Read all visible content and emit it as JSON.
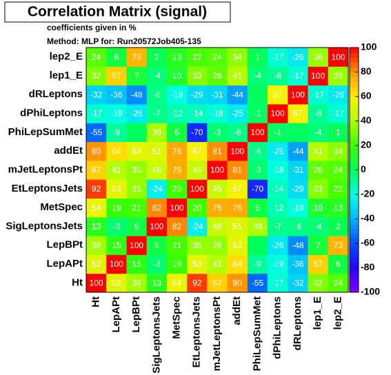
{
  "chart_data": {
    "type": "heatmap",
    "title": "Correlation Matrix (signal)",
    "subtitle": "coefficients given in %",
    "method": "Method: MLP for: Run20572Job405-135",
    "categories": [
      "Ht",
      "LepAPt",
      "LepBPt",
      "SigLeptonsJets",
      "MetSpec",
      "EtLeptonsJets",
      "mJetLeptonsPt",
      "addEt",
      "PhiLepSumMet",
      "dPhiLeptons",
      "dRLeptons",
      "lep1_E",
      "lep2_E"
    ],
    "z": [
      [
        100,
        52,
        38,
        13,
        54,
        92,
        67,
        80,
        -55,
        -17,
        -32,
        32,
        24
      ],
      [
        52,
        100,
        15,
        -3,
        19,
        53,
        41,
        64,
        -9,
        -19,
        -36,
        67,
        6
      ],
      [
        38,
        15,
        100,
        5,
        21,
        35,
        35,
        53,
        0,
        -26,
        -48,
        7,
        73
      ],
      [
        13,
        -3,
        5,
        100,
        82,
        -24,
        46,
        51,
        39,
        -7,
        -6,
        -4,
        2
      ],
      [
        54,
        19,
        21,
        82,
        100,
        20,
        75,
        76,
        5,
        -12,
        -19,
        10,
        13
      ],
      [
        92,
        53,
        35,
        -24,
        20,
        100,
        45,
        57,
        -70,
        -14,
        -29,
        33,
        22
      ],
      [
        67,
        41,
        35,
        46,
        75,
        45,
        100,
        81,
        -3,
        -18,
        -31,
        26,
        24
      ],
      [
        80,
        64,
        53,
        51,
        76,
        57,
        81,
        100,
        -6,
        -25,
        -44,
        41,
        34
      ],
      [
        -55,
        -9,
        0,
        39,
        5,
        -70,
        -3,
        -6,
        100,
        -1,
        0,
        -4,
        1
      ],
      [
        -17,
        -19,
        -26,
        -7,
        -12,
        -14,
        -18,
        -25,
        -1,
        100,
        57,
        -8,
        -17
      ],
      [
        -32,
        -36,
        -48,
        -6,
        -19,
        -29,
        -31,
        -44,
        0,
        57,
        100,
        -17,
        -26
      ],
      [
        32,
        67,
        7,
        -4,
        10,
        33,
        26,
        41,
        -4,
        -8,
        -17,
        100,
        36
      ],
      [
        24,
        6,
        73,
        2,
        13,
        22,
        24,
        34,
        1,
        -17,
        -26,
        36,
        100
      ]
    ],
    "zlim": [
      -100,
      100
    ],
    "zticks": [
      -100,
      -80,
      -60,
      -40,
      -20,
      0,
      20,
      40,
      60,
      80,
      100
    ],
    "colorscale": [
      "#7f00ff",
      "#2a00ff",
      "#0050ff",
      "#00b4ff",
      "#00ffe6",
      "#00ff5a",
      "#3cff00",
      "#b0ff00",
      "#fff000",
      "#ff9600",
      "#ff0000"
    ]
  }
}
